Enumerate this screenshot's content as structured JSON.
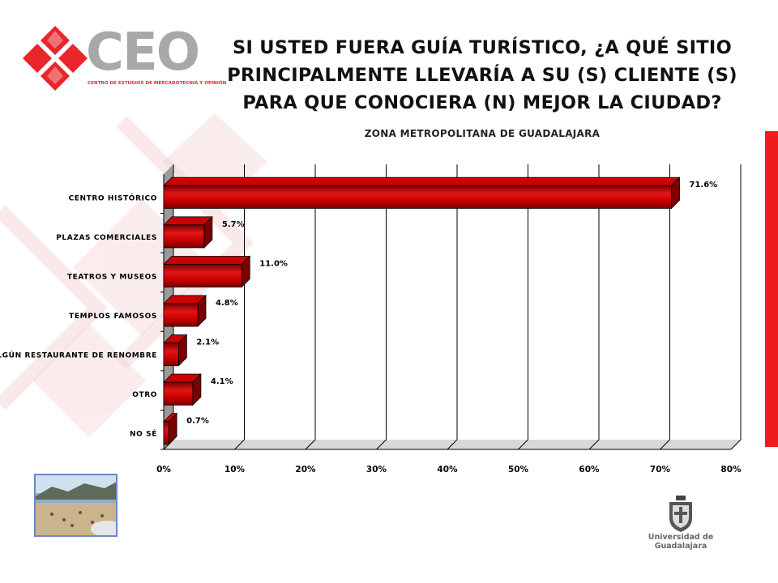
{
  "header": {
    "logo_text": "CEO",
    "logo_tagline": "CENTRO DE ESTUDIOS DE MERCADOTECNIA Y OPINIÓN",
    "title_lines": [
      "SI USTED FUERA GUÍA TURÍSTICO, ¿A QUÉ SITIO",
      "PRINCIPALMENTE LLEVARÍA A SU (S) CLIENTE (S)",
      "PARA QUE CONOCIERA (N) MEJOR LA CIUDAD?"
    ],
    "subtitle": "ZONA METROPOLITANA DE GUADALAJARA"
  },
  "footer": {
    "university": "Universidad de Guadalajara"
  },
  "colors": {
    "bar": "#cc0000",
    "bar_dark": "#7a0000",
    "bar_light": "#e01515",
    "accent": "#ee1c1c",
    "brand_gray": "#a8a8a8"
  },
  "chart_data": {
    "type": "bar",
    "orientation": "horizontal",
    "categories": [
      "CENTRO HISTÓRICO",
      "PLAZAS COMERCIALES",
      "TEATROS Y MUSEOS",
      "TEMPLOS FAMOSOS",
      "ALGÚN RESTAURANTE DE RENOMBRE",
      "OTRO",
      "NO SÉ"
    ],
    "values": [
      71.6,
      5.7,
      11.0,
      4.8,
      2.1,
      4.1,
      0.7
    ],
    "data_labels": [
      "71.6%",
      "5.7%",
      "11.0%",
      "4.8%",
      "2.1%",
      "4.1%",
      "0.7%"
    ],
    "x_ticks": [
      "0%",
      "10%",
      "20%",
      "30%",
      "40%",
      "50%",
      "60%",
      "70%",
      "80%"
    ],
    "xlim": [
      0,
      80
    ],
    "grid": true,
    "legend": "none",
    "three_d": true
  }
}
